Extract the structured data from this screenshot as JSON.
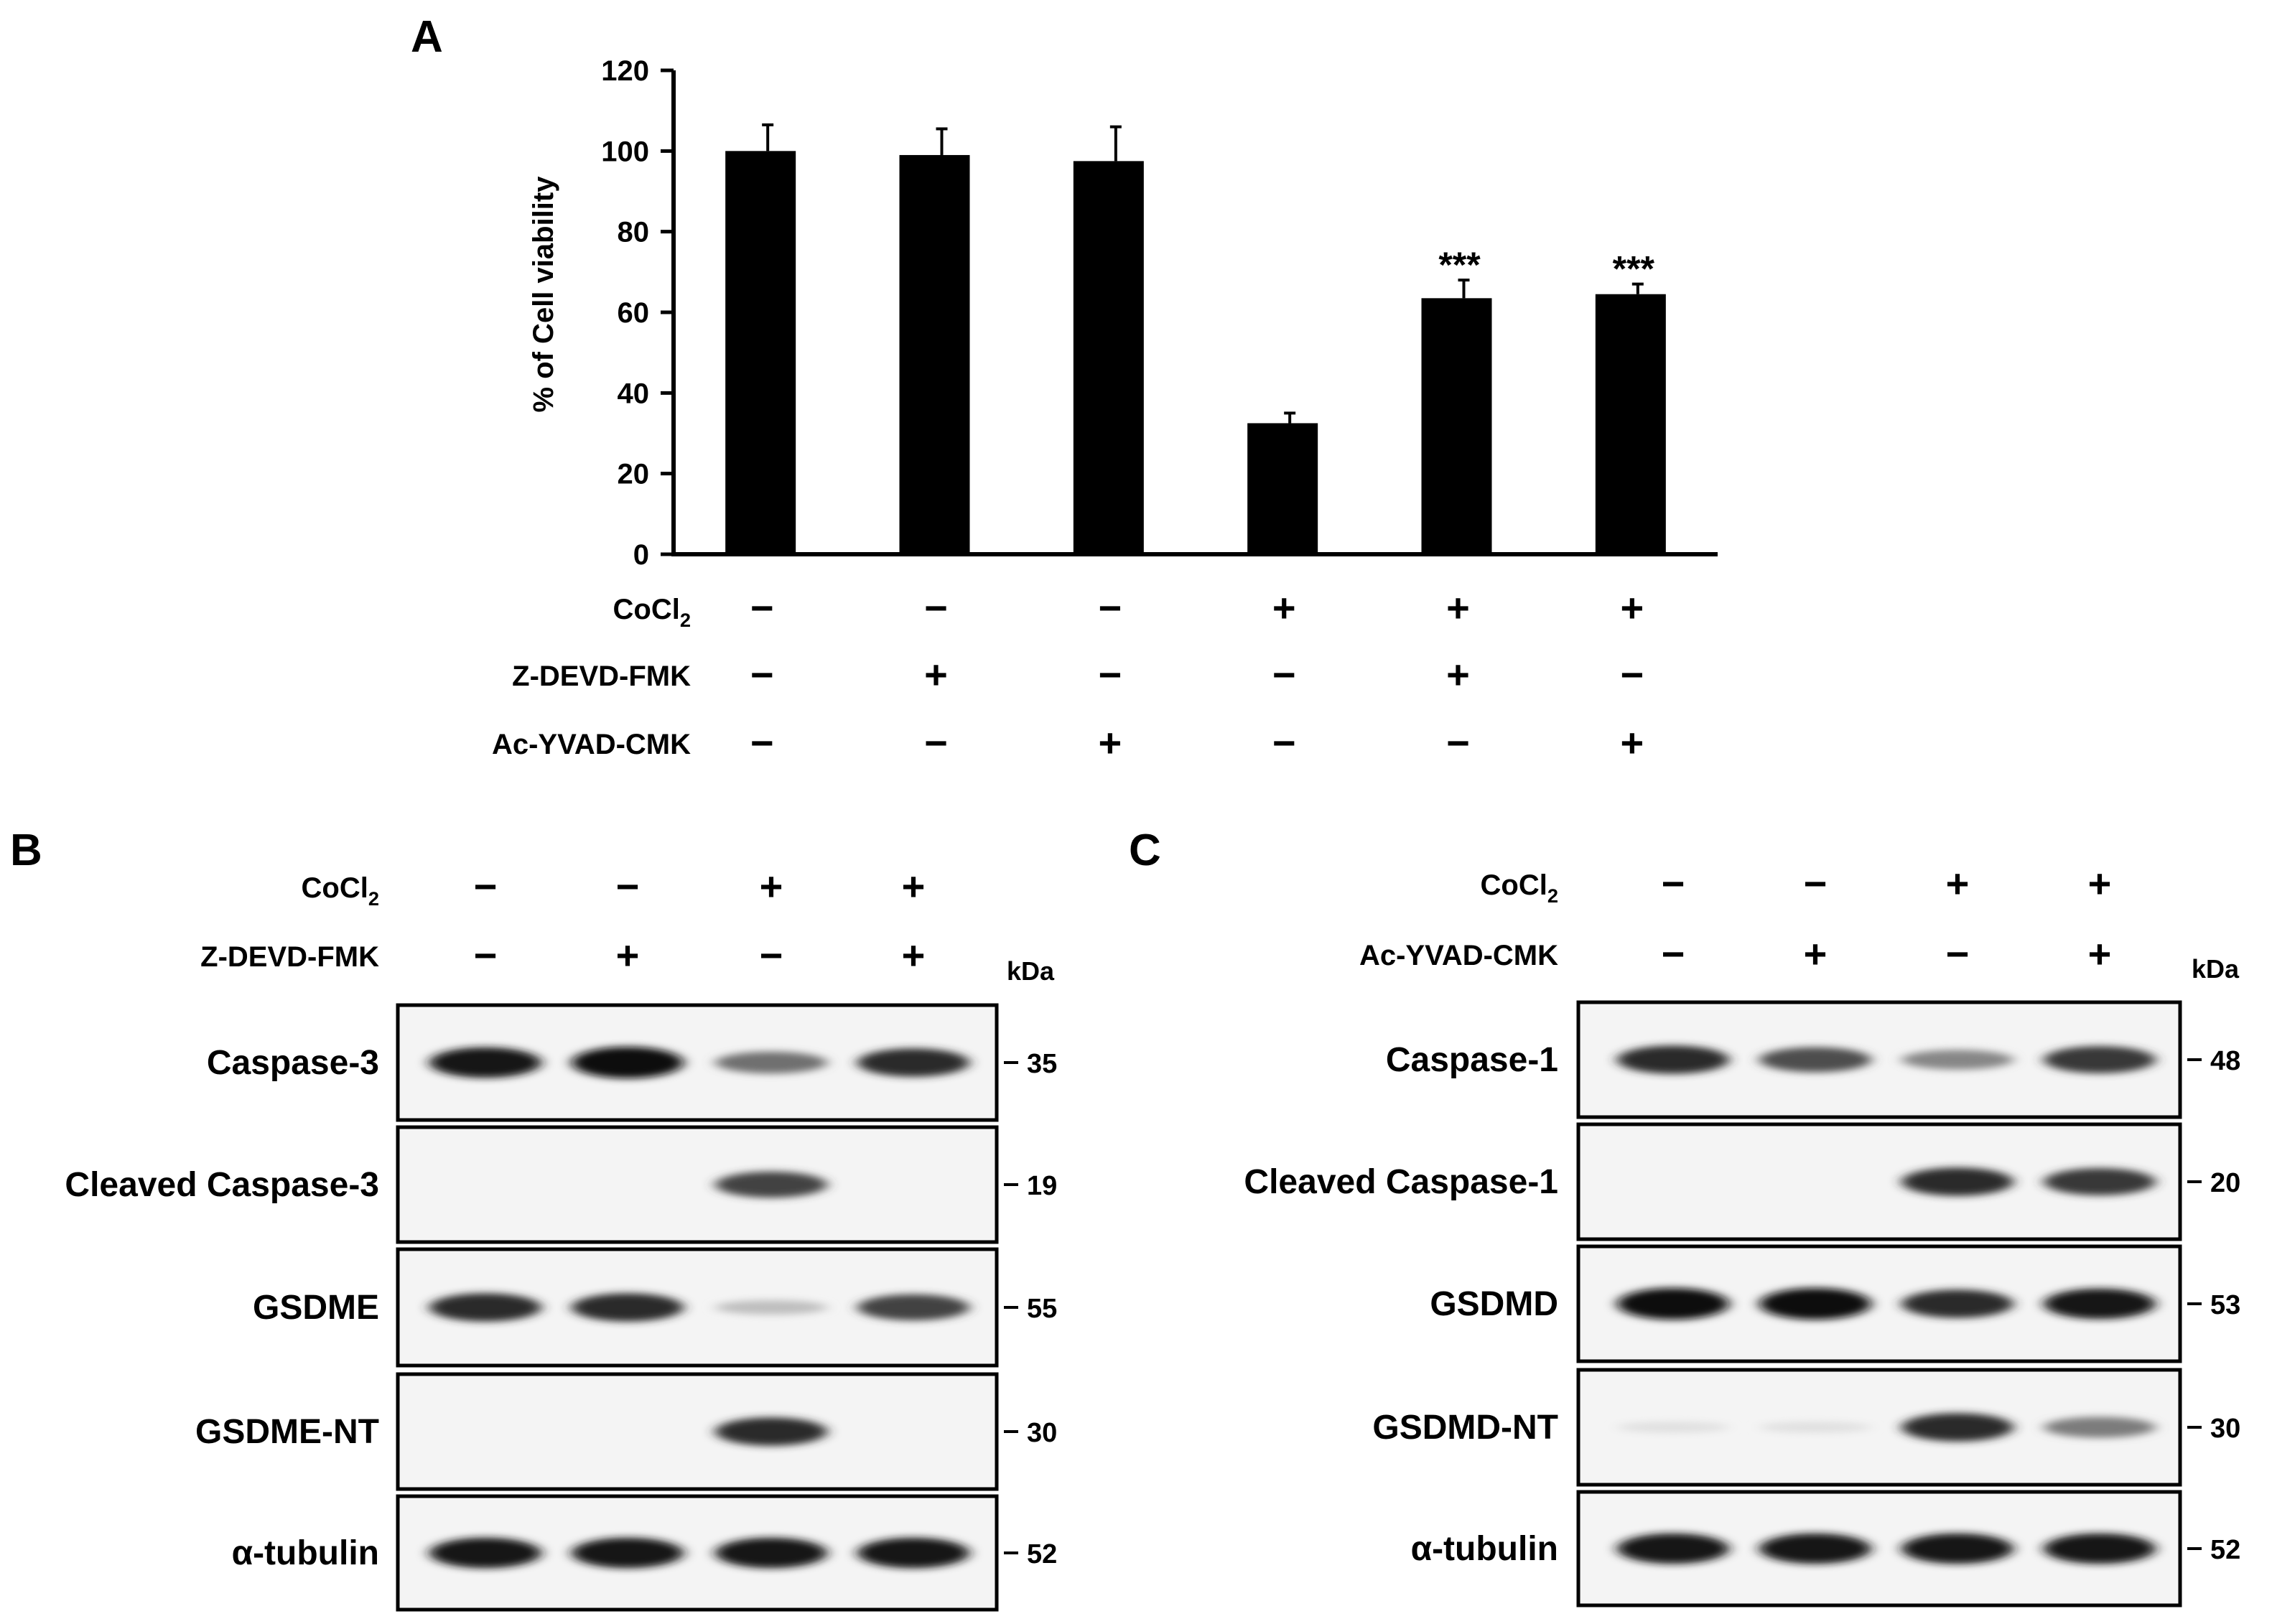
{
  "panel_a": {
    "letter": "A",
    "treatments": [
      {
        "label": "CoCl",
        "subscript": "2",
        "marks": [
          "−",
          "−",
          "−",
          "+",
          "+",
          "+"
        ]
      },
      {
        "label": "Z-DEVD-FMK",
        "marks": [
          "−",
          "+",
          "−",
          "−",
          "+",
          "−"
        ]
      },
      {
        "label": "Ac-YVAD-CMK",
        "marks": [
          "−",
          "−",
          "+",
          "−",
          "−",
          "+"
        ]
      }
    ]
  },
  "chart_data": {
    "type": "bar",
    "ylabel": "% of Cell viability",
    "ylim": [
      0,
      120
    ],
    "yticks": [
      0,
      20,
      40,
      60,
      80,
      100,
      120
    ],
    "values": [
      100,
      99,
      97.5,
      32.5,
      63.5,
      64.5
    ],
    "errors": [
      6.5,
      6.5,
      8.5,
      2.5,
      4.5,
      2.5
    ],
    "annotations": [
      "",
      "",
      "",
      "",
      "***",
      "***"
    ],
    "grid": false,
    "color": "#000000"
  },
  "panel_b": {
    "letter": "B",
    "treatments": [
      {
        "label": "CoCl",
        "subscript": "2",
        "marks": [
          "−",
          "−",
          "+",
          "+"
        ]
      },
      {
        "label": "Z-DEVD-FMK",
        "marks": [
          "−",
          "+",
          "−",
          "+"
        ]
      }
    ],
    "kda_label": "kDa",
    "blots": [
      {
        "label": "Caspase-3",
        "kda": "35",
        "bands": [
          0.95,
          1.0,
          0.55,
          0.85
        ]
      },
      {
        "label": "Cleaved Caspase-3",
        "kda": "19",
        "bands": [
          0,
          0,
          0.75,
          0
        ]
      },
      {
        "label": "GSDME",
        "kda": "55",
        "bands": [
          0.85,
          0.85,
          0.2,
          0.75
        ]
      },
      {
        "label": "GSDME-NT",
        "kda": "30",
        "bands": [
          0,
          0,
          0.85,
          0
        ]
      },
      {
        "label": "α-tubulin",
        "kda": "52",
        "bands": [
          0.95,
          0.95,
          0.95,
          0.95
        ]
      }
    ]
  },
  "panel_c": {
    "letter": "C",
    "treatments": [
      {
        "label": "CoCl",
        "subscript": "2",
        "marks": [
          "−",
          "−",
          "+",
          "+"
        ]
      },
      {
        "label": "Ac-YVAD-CMK",
        "marks": [
          "−",
          "+",
          "−",
          "+"
        ]
      }
    ],
    "kda_label": "kDa",
    "blots": [
      {
        "label": "Caspase-1",
        "kda": "48",
        "bands": [
          0.85,
          0.7,
          0.45,
          0.8
        ]
      },
      {
        "label": "Cleaved Caspase-1",
        "kda": "20",
        "bands": [
          0,
          0,
          0.85,
          0.8
        ]
      },
      {
        "label": "GSDMD",
        "kda": "53",
        "bands": [
          1.0,
          1.0,
          0.85,
          0.95
        ]
      },
      {
        "label": "GSDMD-NT",
        "kda": "30",
        "bands": [
          0.05,
          0.05,
          0.85,
          0.5
        ]
      },
      {
        "label": "α-tubulin",
        "kda": "52",
        "bands": [
          0.95,
          0.95,
          0.95,
          0.95
        ]
      }
    ]
  }
}
